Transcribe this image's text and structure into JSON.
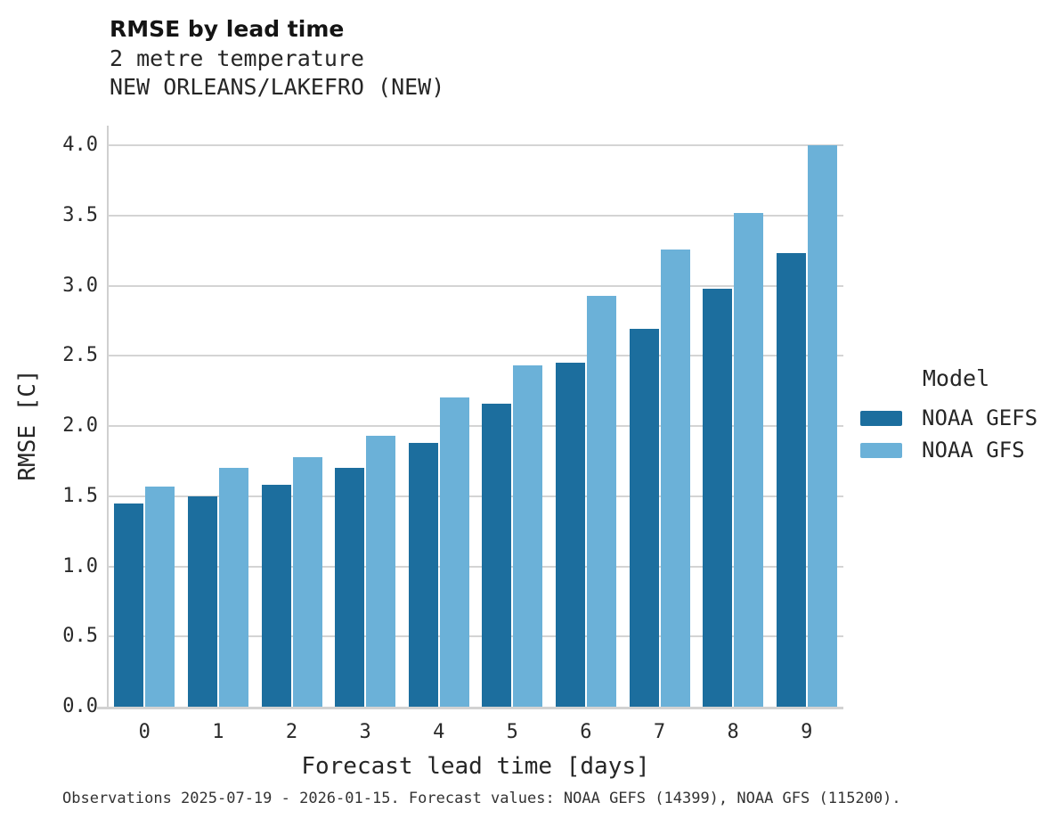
{
  "header": {
    "title": "RMSE by lead time",
    "subtitle1": "2 metre temperature",
    "subtitle2": "NEW ORLEANS/LAKEFRO (NEW)"
  },
  "chart_data": {
    "type": "bar",
    "title": "RMSE by lead time",
    "subtitle": "2 metre temperature — NEW ORLEANS/LAKEFRO (NEW)",
    "xlabel": "Forecast lead time [days]",
    "ylabel": "RMSE [C]",
    "categories": [
      "0",
      "1",
      "2",
      "3",
      "4",
      "5",
      "6",
      "7",
      "8",
      "9"
    ],
    "series": [
      {
        "name": "NOAA GEFS",
        "color": "#1c6e9e",
        "values": [
          1.45,
          1.5,
          1.58,
          1.7,
          1.88,
          2.16,
          2.45,
          2.69,
          2.98,
          3.23
        ]
      },
      {
        "name": "NOAA GFS",
        "color": "#6bb1d8",
        "values": [
          1.57,
          1.7,
          1.78,
          1.93,
          2.2,
          2.43,
          2.93,
          3.26,
          3.52,
          4.0
        ]
      }
    ],
    "ylim": [
      0.0,
      4.14
    ],
    "yticks": [
      0.0,
      0.5,
      1.0,
      1.5,
      2.0,
      2.5,
      3.0,
      3.5,
      4.0
    ],
    "ytick_labels": [
      "0.0",
      "0.5",
      "1.0",
      "1.5",
      "2.0",
      "2.5",
      "3.0",
      "3.5",
      "4.0"
    ],
    "grid": true,
    "legend_title": "Model",
    "legend_position": "right"
  },
  "axes": {
    "xlabel": "Forecast lead time [days]",
    "ylabel": "RMSE [C]"
  },
  "legend": {
    "title": "Model",
    "entries": [
      {
        "label": "NOAA GEFS",
        "color": "#1c6e9e"
      },
      {
        "label": "NOAA GFS",
        "color": "#6bb1d8"
      }
    ]
  },
  "footer": {
    "text": "Observations 2025-07-19 - 2026-01-15. Forecast values: NOAA GEFS (14399), NOAA GFS (115200)."
  },
  "colors": {
    "noaa_gefs": "#1c6e9e",
    "noaa_gfs": "#6bb1d8",
    "gridline": "#d4d4d4",
    "axis": "#cfcfcf",
    "text": "#262626"
  }
}
